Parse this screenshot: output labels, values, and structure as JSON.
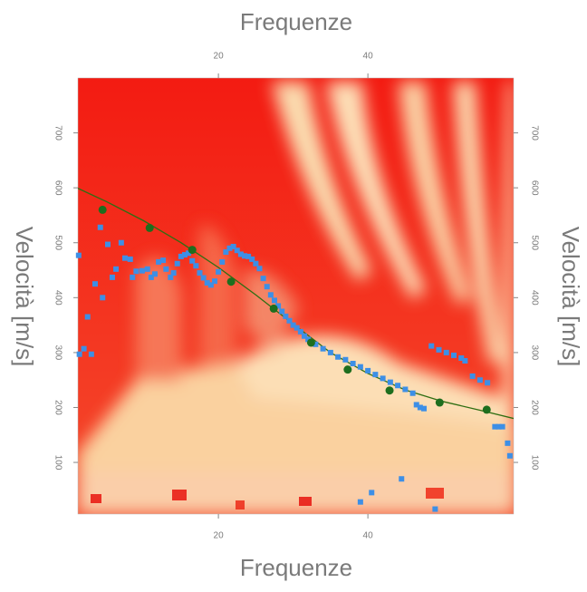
{
  "chart_data": {
    "type": "scatter",
    "x_label": "Frequenze",
    "y_label": "Velocità [m/s]",
    "xlim": [
      1.2,
      59.5
    ],
    "ylim": [
      6,
      800
    ],
    "xticks": [
      20,
      40
    ],
    "yticks": [
      100,
      200,
      300,
      400,
      500,
      600,
      700
    ],
    "series": [
      {
        "mode": "line",
        "color": "#2f6e12",
        "x": [
          1.2,
          5,
          10,
          15,
          20,
          25,
          30,
          35,
          40,
          45,
          50,
          55,
          59.5
        ],
        "y": [
          599,
          575,
          540,
          500,
          455,
          405,
          352,
          300,
          262,
          232,
          211,
          195,
          180
        ]
      },
      {
        "mode": "markers",
        "color": "#3d8fe6",
        "x": [
          1.3,
          1.4,
          2,
          2.5,
          3,
          3.5,
          4.2,
          4.5,
          5.2,
          5.8,
          6.3,
          7,
          7.5,
          8.2,
          8.5,
          9,
          9.8,
          10.5,
          11,
          11.5,
          12,
          12.6,
          13,
          13.6,
          14,
          14.5,
          15,
          15.5,
          16,
          16.5,
          17,
          17.5,
          18,
          18.5,
          19,
          19.5,
          20,
          20.5,
          21,
          21.5,
          22,
          22.5,
          23,
          23.5,
          24,
          24.5,
          25,
          25.5,
          26,
          26.5,
          27,
          27.5,
          28,
          28.5,
          29,
          29.5,
          30,
          30.5,
          31,
          31.5,
          32,
          33,
          34,
          35,
          36,
          37,
          38,
          39,
          40,
          41,
          42,
          43,
          44,
          45,
          46,
          46.5,
          47,
          47.5,
          48.5,
          49.5,
          50.5,
          51.5,
          52.5,
          53,
          54,
          55,
          56,
          57,
          57.5,
          58,
          58.7,
          59,
          44.5,
          40.5,
          39,
          49
        ],
        "y": [
          477,
          297,
          307,
          365,
          297,
          425,
          528,
          400,
          497,
          437,
          452,
          500,
          472,
          470,
          437,
          448,
          449,
          452,
          437,
          443,
          465,
          468,
          452,
          437,
          445,
          462,
          475,
          478,
          481,
          467,
          458,
          445,
          436,
          427,
          423,
          430,
          447,
          465,
          483,
          490,
          493,
          486,
          479,
          476,
          475,
          470,
          462,
          453,
          435,
          420,
          405,
          395,
          385,
          375,
          366,
          358,
          350,
          345,
          338,
          330,
          324,
          315,
          307,
          300,
          292,
          287,
          280,
          274,
          267,
          260,
          253,
          246,
          240,
          233,
          226,
          205,
          200,
          198,
          312,
          305,
          300,
          295,
          290,
          285,
          257,
          250,
          245,
          165,
          165,
          165,
          135,
          112,
          70,
          45,
          28,
          15
        ]
      },
      {
        "mode": "markers",
        "color": "#1e6e1e",
        "x": [
          4.5,
          10.8,
          16.5,
          21.7,
          27.4,
          32.4,
          37.3,
          42.9,
          49.6,
          55.9
        ],
        "y": [
          560,
          527,
          487,
          429,
          380,
          318,
          269,
          231,
          209,
          196
        ]
      }
    ]
  }
}
